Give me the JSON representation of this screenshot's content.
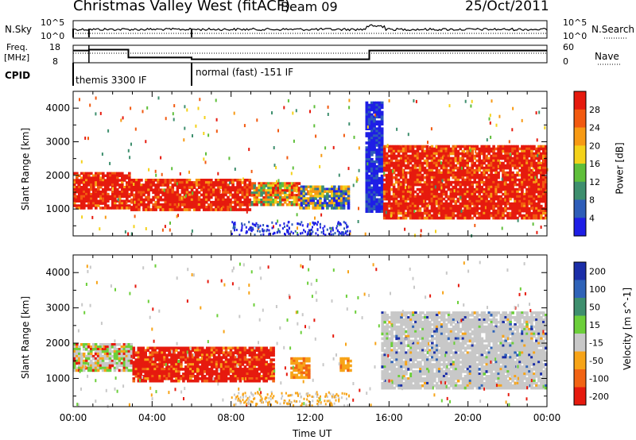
{
  "header": {
    "station": "Christmas Valley West (fitACF)",
    "beam": "Beam 09",
    "date": "25/Oct/2011"
  },
  "summary": {
    "nsky_label": "N.Sky",
    "nsky_ticks": [
      "10^5",
      "10^0"
    ],
    "nsky_ticks_right": [
      "10^5",
      "10^0"
    ],
    "nsearch_label": "N.Search",
    "freq_label_lines": [
      "Freq.",
      "[MHz]"
    ],
    "freq_ticks": [
      "18",
      "8"
    ],
    "nave_ticks": [
      "60",
      "0"
    ],
    "nave_label": "Nave",
    "cpid_label": "CPID",
    "cpid_segments": [
      {
        "start_hour": 0,
        "end_hour": 6,
        "label": "themis 3300 IF"
      },
      {
        "start_hour": 6,
        "end_hour": 24,
        "label": "normal (fast) -151 IF"
      }
    ],
    "freq_series_mhz": [
      {
        "start_hour": 0,
        "end_hour": 0.8,
        "value": 15
      },
      {
        "start_hour": 0.8,
        "end_hour": 2.8,
        "value": 15.5
      },
      {
        "start_hour": 2.8,
        "end_hour": 6.0,
        "value": 11
      },
      {
        "start_hour": 6.0,
        "end_hour": 15.0,
        "value": 10
      },
      {
        "start_hour": 15.0,
        "end_hour": 24,
        "value": 15
      }
    ]
  },
  "xaxis": {
    "label": "Time UT",
    "ticks": [
      "00:00",
      "04:00",
      "08:00",
      "12:00",
      "16:00",
      "20:00",
      "00:00"
    ],
    "range_hours": [
      0,
      24
    ]
  },
  "chart_data": [
    {
      "type": "heatmap",
      "name": "power",
      "ylabel": "Slant Range [km]",
      "yticks": [
        "1000",
        "2000",
        "3000",
        "4000"
      ],
      "ylim": [
        200,
        4500
      ],
      "colorbar_label": "Power [dB]",
      "colorbar_ticks": [
        "4",
        "8",
        "12",
        "16",
        "20",
        "24",
        "28"
      ],
      "colorbar_colors": [
        "#1e1ee6",
        "#2e5db8",
        "#3e8f6e",
        "#5fbf3a",
        "#f4d21a",
        "#f79a14",
        "#f25a10",
        "#e61a0e"
      ],
      "regions": [
        {
          "t0": 0,
          "t1": 2.9,
          "r0": 1000,
          "r1": 2100,
          "level": "red"
        },
        {
          "t0": 2.9,
          "t1": 9.0,
          "r0": 950,
          "r1": 1900,
          "level": "red"
        },
        {
          "t0": 9.0,
          "t1": 11.5,
          "r0": 1100,
          "r1": 1800,
          "level": "mixed"
        },
        {
          "t0": 11.5,
          "t1": 14.0,
          "r0": 1000,
          "r1": 1700,
          "level": "low"
        },
        {
          "t0": 14.8,
          "t1": 15.7,
          "r0": 900,
          "r1": 4200,
          "level": "blue"
        },
        {
          "t0": 15.7,
          "t1": 24,
          "r0": 700,
          "r1": 2900,
          "level": "red"
        }
      ]
    },
    {
      "type": "heatmap",
      "name": "velocity",
      "ylabel": "Slant Range [km]",
      "yticks": [
        "1000",
        "2000",
        "3000",
        "4000"
      ],
      "ylim": [
        200,
        4500
      ],
      "colorbar_label": "Velocity [m s^-1]",
      "colorbar_ticks": [
        "200",
        "100",
        "50",
        "15",
        "-15",
        "-50",
        "-100",
        "-200"
      ],
      "colorbar_colors": [
        "#1b2ea8",
        "#2f63b8",
        "#3e8f6e",
        "#6ccf3a",
        "#c8c8c8",
        "#f7a418",
        "#f26414",
        "#e61a0e"
      ],
      "regions": [
        {
          "t0": 0,
          "t1": 3.0,
          "r0": 1200,
          "r1": 2000,
          "level": "gray-green"
        },
        {
          "t0": 3.0,
          "t1": 10.2,
          "r0": 900,
          "r1": 1900,
          "level": "red"
        },
        {
          "t0": 11.0,
          "t1": 12.0,
          "r0": 1000,
          "r1": 1600,
          "level": "orange"
        },
        {
          "t0": 13.5,
          "t1": 14.1,
          "r0": 1200,
          "r1": 1600,
          "level": "orange"
        },
        {
          "t0": 15.6,
          "t1": 24,
          "r0": 700,
          "r1": 2900,
          "level": "gray"
        }
      ]
    }
  ]
}
